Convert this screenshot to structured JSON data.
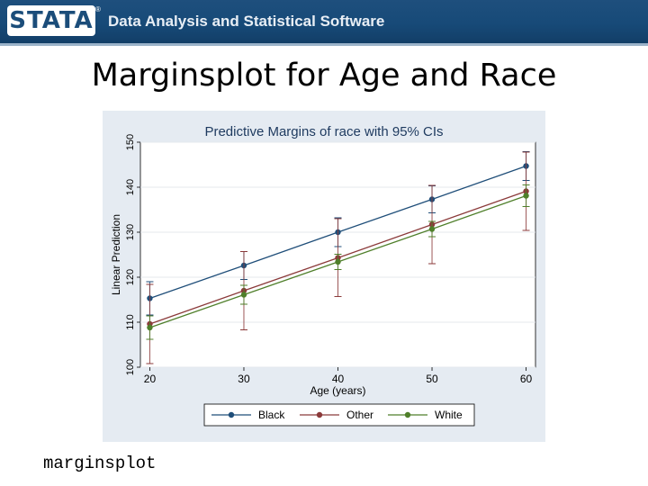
{
  "header": {
    "logo_text": "STATA",
    "logo_mark": "®",
    "tagline": "Data Analysis and Statistical Software"
  },
  "slide": {
    "title": "Marginsplot for Age and Race",
    "command": "marginsplot"
  },
  "colors": {
    "banner": "#1b4d7a",
    "chart_background": "#e5ebf2",
    "plot_background": "#ffffff",
    "black_series": "#1f4e79",
    "other_series": "#8b3a3a",
    "white_series": "#4f7f2a"
  },
  "chart_data": {
    "type": "line",
    "title": "Predictive Margins of race with 95% CIs",
    "xlabel": "Age (years)",
    "ylabel": "Linear Prediction",
    "x": [
      20,
      30,
      40,
      50,
      60
    ],
    "xticks": [
      20,
      30,
      40,
      50,
      60
    ],
    "yticks": [
      100,
      110,
      120,
      130,
      140,
      150
    ],
    "xlim": [
      19,
      61
    ],
    "ylim": [
      100,
      150
    ],
    "grid": true,
    "error_bars": "95% CI",
    "legend_position": "bottom",
    "series": [
      {
        "name": "Black",
        "color": "#1f4e79",
        "values": [
          115.3,
          122.6,
          130.0,
          137.3,
          144.7
        ],
        "ci_low": [
          111.6,
          119.5,
          126.8,
          134.3,
          141.5
        ],
        "ci_high": [
          119.0,
          125.7,
          133.2,
          140.3,
          147.9
        ]
      },
      {
        "name": "Other",
        "color": "#8b3a3a",
        "values": [
          109.6,
          117.0,
          124.3,
          131.7,
          139.1
        ],
        "ci_low": [
          100.8,
          108.3,
          115.7,
          123.0,
          130.4
        ],
        "ci_high": [
          118.4,
          125.7,
          133.0,
          140.4,
          147.8
        ]
      },
      {
        "name": "White",
        "color": "#4f7f2a",
        "values": [
          108.8,
          116.1,
          123.4,
          130.7,
          138.1
        ],
        "ci_low": [
          106.2,
          114.0,
          121.7,
          129.0,
          135.7
        ],
        "ci_high": [
          111.4,
          118.2,
          125.1,
          132.4,
          140.5
        ]
      }
    ]
  }
}
